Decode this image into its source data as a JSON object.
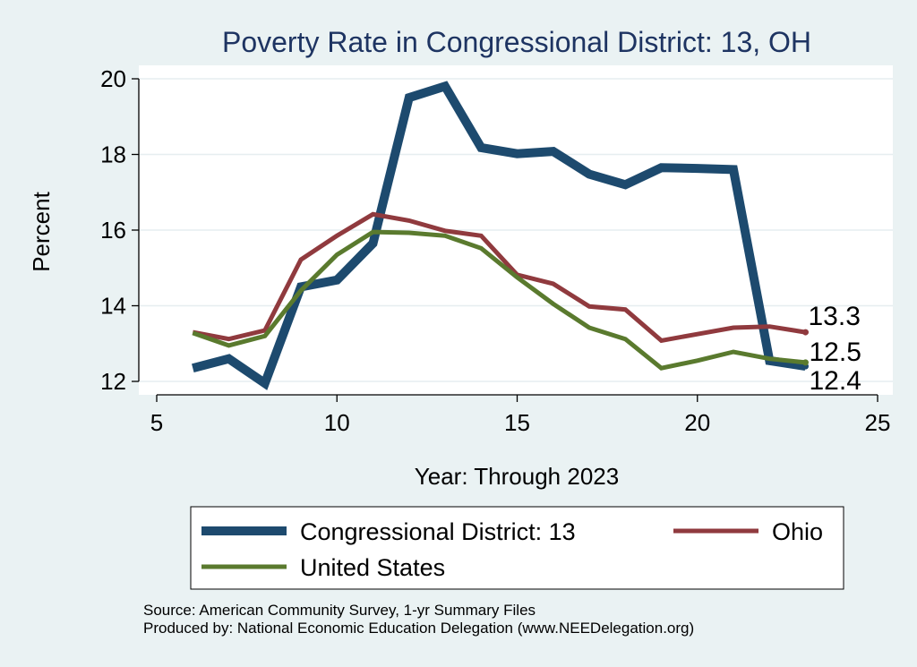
{
  "chart_data": {
    "type": "line",
    "title": "Poverty Rate in Congressional District:  13, OH",
    "xlabel": "Year: Through 2023",
    "ylabel": "Percent",
    "xlim": [
      5,
      25
    ],
    "ylim": [
      11.75,
      20.3
    ],
    "x_ticks": [
      5,
      10,
      15,
      20,
      25
    ],
    "y_ticks": [
      12,
      14,
      16,
      18,
      20
    ],
    "grid": true,
    "legend_position": "bottom",
    "series": [
      {
        "name": "Congressional District:  13",
        "color": "#1d4a6e",
        "x": [
          6,
          7,
          8,
          9,
          10,
          11,
          12,
          13,
          14,
          15,
          16,
          17,
          18,
          19,
          20,
          21,
          22,
          23
        ],
        "values": [
          12.35,
          12.6,
          11.95,
          14.5,
          14.68,
          15.65,
          19.5,
          19.8,
          18.18,
          18.02,
          18.08,
          17.48,
          17.2,
          17.65,
          17.63,
          17.6,
          12.55,
          12.4
        ],
        "end_label": "12.4"
      },
      {
        "name": "Ohio",
        "color": "#903a3e",
        "x": [
          6,
          7,
          8,
          9,
          10,
          11,
          12,
          13,
          14,
          15,
          16,
          17,
          18,
          19,
          20,
          21,
          22,
          23
        ],
        "values": [
          13.3,
          13.12,
          13.35,
          15.22,
          15.85,
          16.42,
          16.25,
          15.98,
          15.85,
          14.82,
          14.58,
          13.98,
          13.9,
          13.08,
          13.25,
          13.42,
          13.45,
          13.3
        ],
        "end_label": "13.3"
      },
      {
        "name": "United States",
        "color": "#5a7a2e",
        "x": [
          6,
          7,
          8,
          9,
          10,
          11,
          12,
          13,
          14,
          15,
          16,
          17,
          18,
          19,
          20,
          21,
          22,
          23
        ],
        "values": [
          13.28,
          12.95,
          13.2,
          14.4,
          15.35,
          15.95,
          15.93,
          15.85,
          15.52,
          14.75,
          14.05,
          13.42,
          13.12,
          12.35,
          12.55,
          12.78,
          12.6,
          12.5
        ],
        "end_label": "12.5"
      }
    ]
  },
  "footer": {
    "source": "Source: American Community Survey, 1-yr Summary Files",
    "produced": "Produced by: National Economic Education Delegation (www.NEEDelegation.org)"
  }
}
